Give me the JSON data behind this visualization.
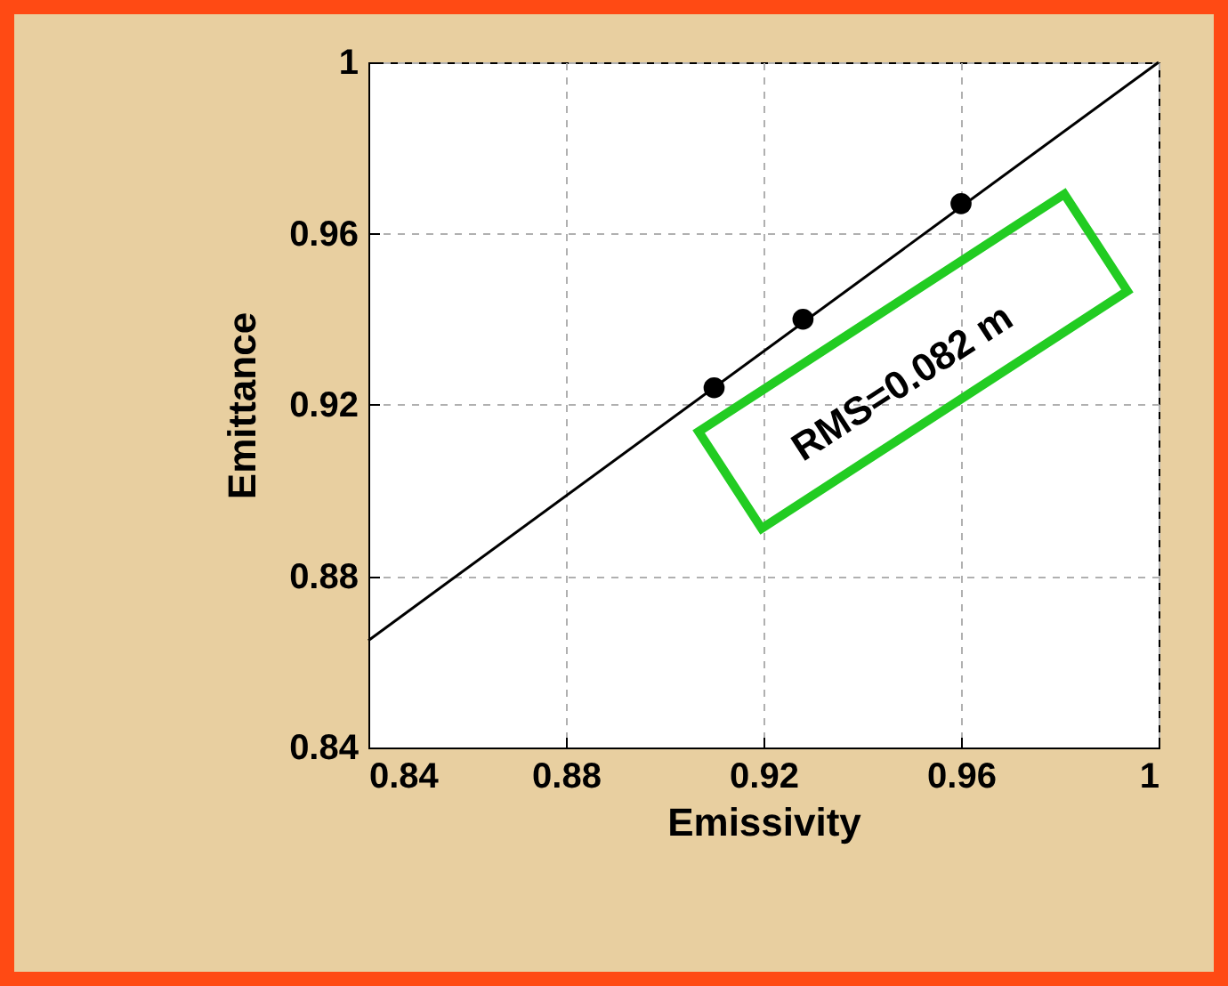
{
  "chart_data": {
    "type": "scatter",
    "xlabel": "Emissivity",
    "ylabel": "Emittance",
    "xlim": [
      0.84,
      1
    ],
    "ylim": [
      0.84,
      1
    ],
    "xticks": [
      0.84,
      0.88,
      0.92,
      0.96,
      1
    ],
    "yticks": [
      0.84,
      0.88,
      0.92,
      0.96,
      1
    ],
    "grid": true,
    "marker": "circle",
    "series": [
      {
        "color": "#000000",
        "x": [
          0.91,
          0.928,
          0.96
        ],
        "values": [
          0.924,
          0.94,
          0.967
        ]
      },
      {
        "type": "line",
        "color": "#000000",
        "line_style": "solid",
        "marker": "none",
        "x": [
          0.84,
          1
        ],
        "values": [
          0.865,
          1
        ]
      }
    ],
    "annotations": [
      "RMS=0.082 m"
    ]
  }
}
